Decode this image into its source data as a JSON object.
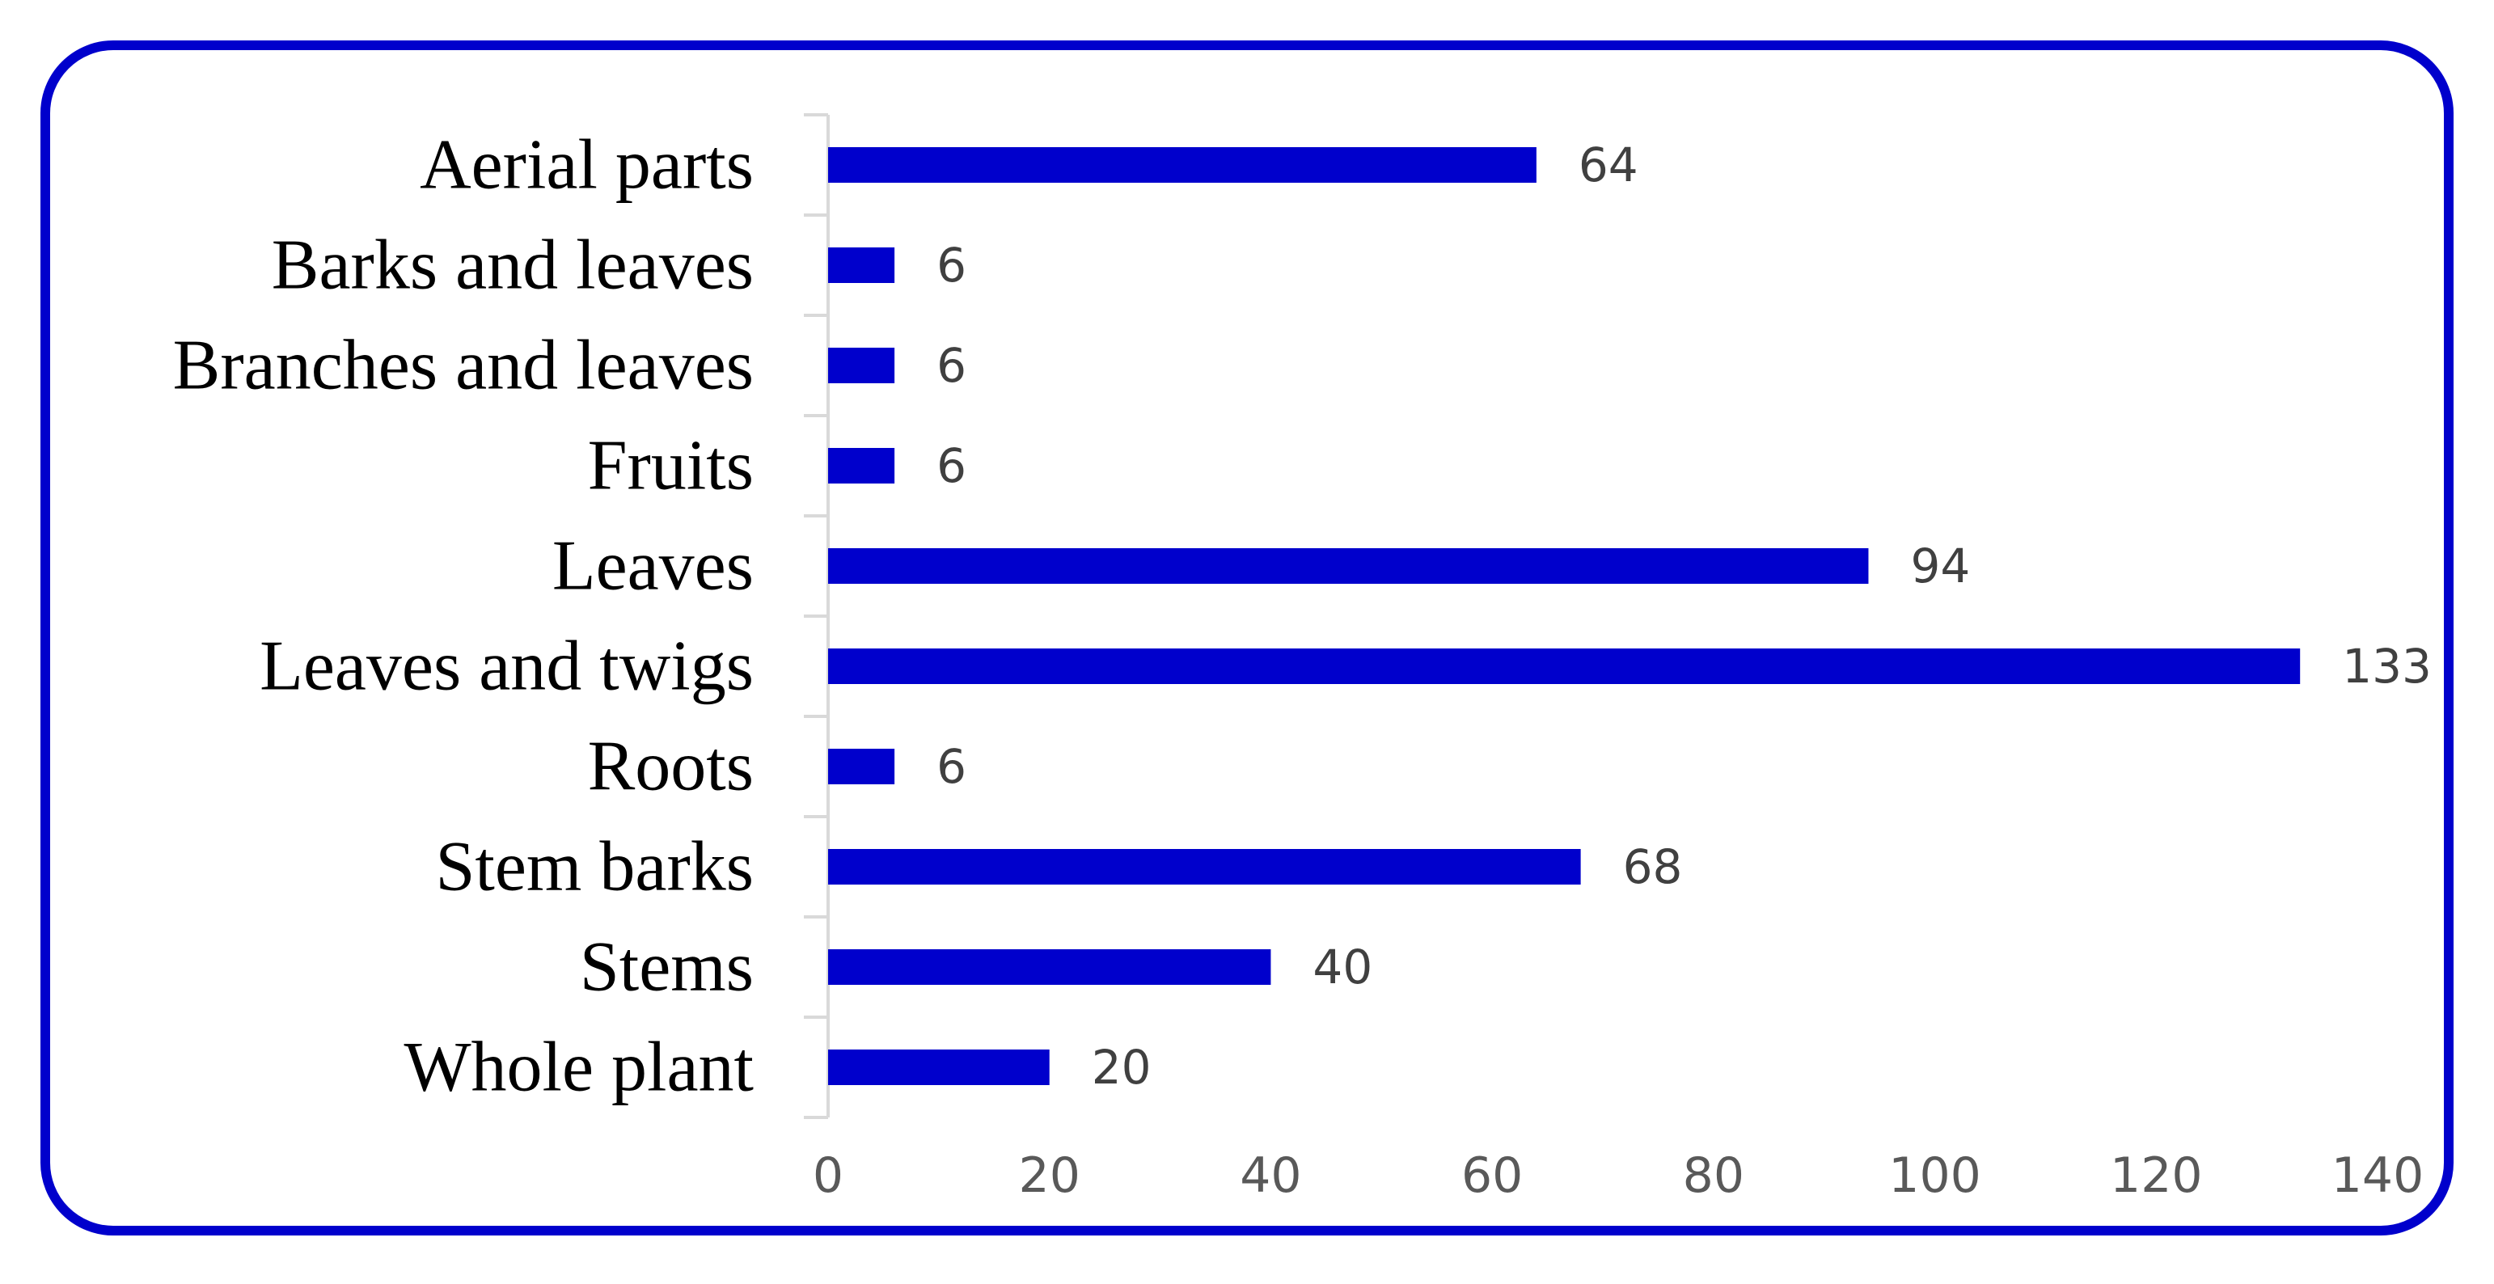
{
  "chart_data": {
    "type": "bar",
    "orientation": "horizontal",
    "categories": [
      "Aerial parts",
      "Barks and leaves",
      "Branches and leaves",
      "Fruits",
      "Leaves",
      "Leaves and twigs",
      "Roots",
      "Stem barks",
      "Stems",
      "Whole plant"
    ],
    "values": [
      64,
      6,
      6,
      6,
      94,
      133,
      6,
      68,
      40,
      20
    ],
    "data_labels": [
      "64",
      "6",
      "6",
      "6",
      "94",
      "133",
      "6",
      "68",
      "40",
      "20"
    ],
    "xlim": [
      0,
      140
    ],
    "x_ticks": [
      "0",
      "20",
      "40",
      "60",
      "80",
      "100",
      "120",
      "140"
    ],
    "title": "",
    "xlabel": "",
    "ylabel": "",
    "grid": false,
    "legend": "none",
    "bar_color": "#0000cc",
    "frame_color": "#0000cc"
  }
}
